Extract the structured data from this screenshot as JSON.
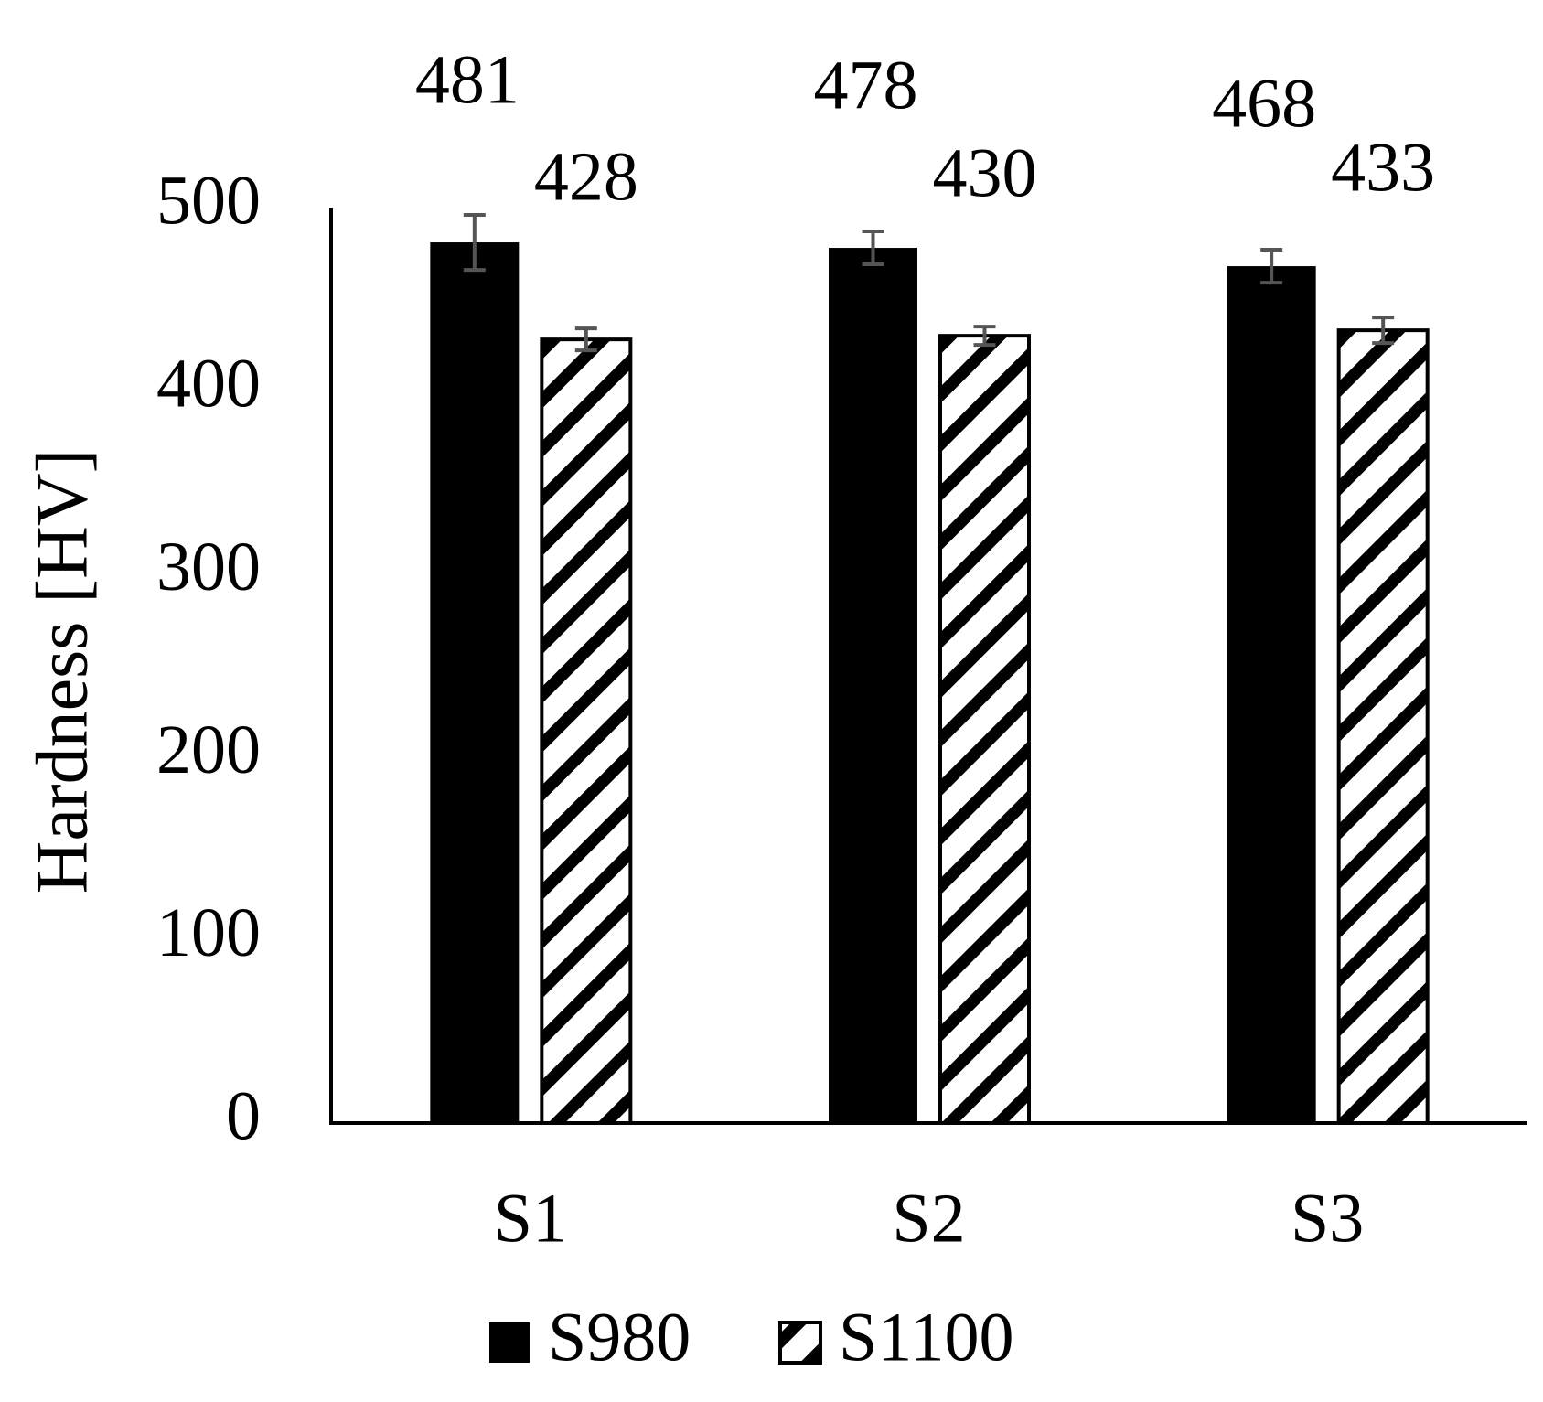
{
  "chart_data": {
    "type": "bar",
    "y_label": "Hardness [HV]",
    "categories": [
      "S1",
      "S2",
      "S3"
    ],
    "series": [
      {
        "name": "S980",
        "color": "#000000",
        "pattern": "solid",
        "values": [
          481,
          478,
          468
        ],
        "errors": [
          15,
          9,
          9
        ]
      },
      {
        "name": "S1100",
        "color": "#000000",
        "pattern": "hatch",
        "values": [
          428,
          430,
          433
        ],
        "errors": [
          6,
          5,
          7
        ]
      }
    ],
    "error_bar_color": "#555555",
    "ylim": [
      0,
      500
    ],
    "yticks": [
      0,
      100,
      200,
      300,
      400,
      500
    ],
    "grid": false,
    "legend": "bottom"
  }
}
